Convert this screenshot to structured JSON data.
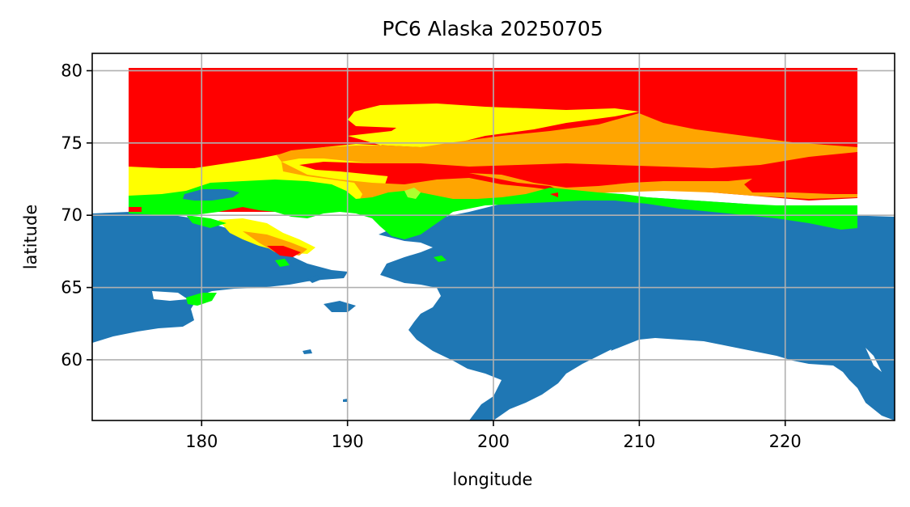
{
  "chart_data": {
    "type": "map",
    "title": "PC6 Alaska 20250705",
    "xlabel": "longitude",
    "ylabel": "latitude",
    "xlim": [
      172.5,
      227.5
    ],
    "ylim": [
      55.8,
      81.2
    ],
    "xticks": [
      180,
      190,
      200,
      210,
      220
    ],
    "yticks": [
      60,
      65,
      70,
      75,
      80
    ],
    "grid": true,
    "colors": {
      "land": "#1f77b4",
      "ocean": "#ffffff",
      "red": "#ff0000",
      "yellow": "#ffff00",
      "orange": "#ffa500",
      "green": "#00ff00",
      "lightgreen": "#adff2f",
      "grid": "#b0b0b0"
    },
    "data_extent": {
      "lon": [
        175,
        225
      ],
      "lat": [
        70,
        80
      ]
    }
  }
}
